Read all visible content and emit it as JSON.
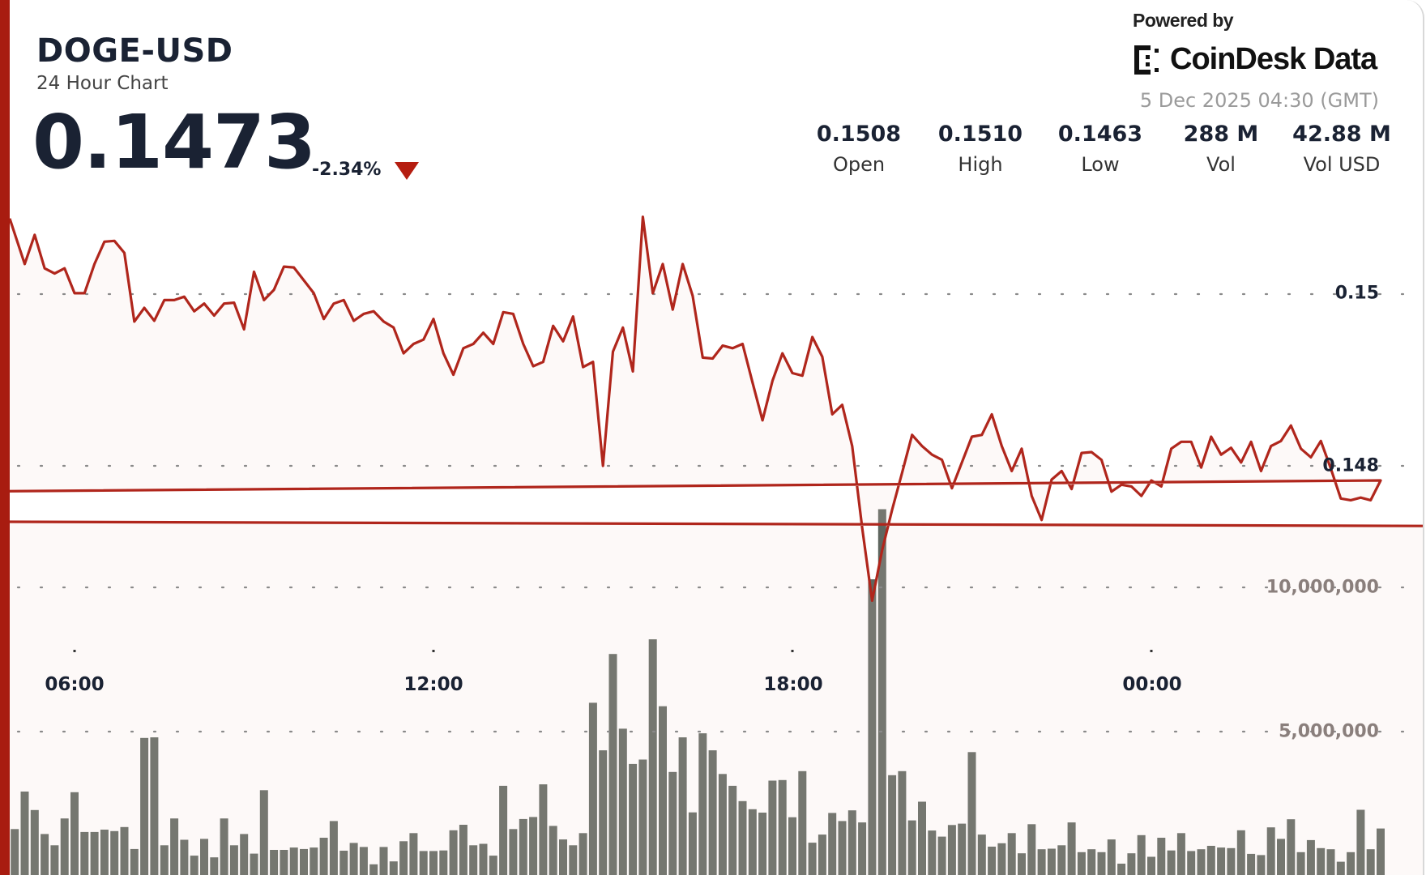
{
  "header": {
    "title": "DOGE-USD",
    "subtitle": "24 Hour Chart",
    "price": "0.1473",
    "change": "-2.34%",
    "direction": "down",
    "powered_by": "Powered by",
    "brand": "CoinDesk Data",
    "timestamp": "5 Dec 2025 04:30 (GMT)"
  },
  "stats": [
    {
      "value": "0.1508",
      "label": "Open"
    },
    {
      "value": "0.1510",
      "label": "High"
    },
    {
      "value": "0.1463",
      "label": "Low"
    },
    {
      "value": "288 M",
      "label": "Vol"
    },
    {
      "value": "42.88 M",
      "label": "Vol USD"
    }
  ],
  "colors": {
    "accent": "#a81c10",
    "line": "#b0261c",
    "area": "#c0504a",
    "bars": "#5f665f",
    "down": "#b51d10"
  },
  "chart_data": {
    "type": "area",
    "grid": true,
    "price_ticks": [
      "0.15",
      "0.148"
    ],
    "price_tick_values": [
      0.15,
      0.148
    ],
    "volume_ticks": [
      "10,000,000",
      "5,000,000"
    ],
    "volume_tick_values": [
      10000000,
      5000000
    ],
    "x_ticks": [
      "06:00",
      "12:00",
      "18:00",
      "00:00"
    ],
    "x": [
      "05:00",
      "05:10",
      "05:20",
      "05:30",
      "05:40",
      "05:50",
      "06:00",
      "06:10",
      "06:20",
      "06:30",
      "06:40",
      "06:50",
      "07:00",
      "07:10",
      "07:20",
      "07:30",
      "07:40",
      "07:50",
      "08:00",
      "08:10",
      "08:20",
      "08:30",
      "08:40",
      "08:50",
      "09:00",
      "09:10",
      "09:20",
      "09:30",
      "09:40",
      "09:50",
      "10:00",
      "10:10",
      "10:20",
      "10:30",
      "10:40",
      "10:50",
      "11:00",
      "11:10",
      "11:20",
      "11:30",
      "11:40",
      "11:50",
      "12:00",
      "12:10",
      "12:20",
      "12:30",
      "12:40",
      "12:50",
      "13:00",
      "13:10",
      "13:20",
      "13:30",
      "13:40",
      "13:50",
      "14:00",
      "14:10",
      "14:20",
      "14:30",
      "14:40",
      "14:50",
      "15:00",
      "15:10",
      "15:20",
      "15:30",
      "15:40",
      "15:50",
      "16:00",
      "16:10",
      "16:20",
      "16:30",
      "16:40",
      "16:50",
      "17:00",
      "17:10",
      "17:20",
      "17:30",
      "17:40",
      "17:50",
      "18:00",
      "18:10",
      "18:20",
      "18:30",
      "18:40",
      "18:50",
      "19:00",
      "19:10",
      "19:20",
      "19:30",
      "19:40",
      "19:50",
      "20:00",
      "20:10",
      "20:20",
      "20:30",
      "20:40",
      "20:50",
      "21:00",
      "21:10",
      "21:20",
      "21:30",
      "21:40",
      "21:50",
      "22:00",
      "22:10",
      "22:20",
      "22:30",
      "22:40",
      "22:50",
      "23:00",
      "23:10",
      "23:20",
      "23:30",
      "23:40",
      "23:50",
      "00:00",
      "00:10",
      "00:20",
      "00:30",
      "00:40",
      "00:50",
      "01:00",
      "01:10",
      "01:20",
      "01:30",
      "01:40",
      "01:50",
      "02:00",
      "02:10",
      "02:20",
      "02:30",
      "02:40",
      "02:50",
      "03:00",
      "03:10",
      "03:20",
      "03:30",
      "03:40",
      "03:50",
      "04:00",
      "04:10",
      "04:20",
      "04:30"
    ],
    "series": [
      {
        "type": "line",
        "values": [
          0.15088,
          0.15035,
          0.15069,
          0.1503,
          0.15024,
          0.1503,
          0.15001,
          0.15001,
          0.15035,
          0.15061,
          0.15062,
          0.15048,
          0.14968,
          0.14984,
          0.14969,
          0.14993,
          0.14993,
          0.14997,
          0.1498,
          0.14989,
          0.14975,
          0.14989,
          0.1499,
          0.14959,
          0.15026,
          0.14993,
          0.15005,
          0.15032,
          0.15031,
          0.15016,
          0.15001,
          0.14971,
          0.14989,
          0.14993,
          0.14969,
          0.14977,
          0.1498,
          0.14968,
          0.14961,
          0.14931,
          0.14942,
          0.14947,
          0.14971,
          0.14931,
          0.14906,
          0.14937,
          0.14942,
          0.14955,
          0.14942,
          0.14979,
          0.14977,
          0.14942,
          0.14916,
          0.14921,
          0.14963,
          0.14945,
          0.14974,
          0.14915,
          0.14921,
          0.148,
          0.14933,
          0.14961,
          0.1491,
          0.1509,
          0.15001,
          0.15035,
          0.14982,
          0.15035,
          0.14998,
          0.14926,
          0.14925,
          0.1494,
          0.14937,
          0.14942,
          0.14897,
          0.14853,
          0.14899,
          0.14931,
          0.14908,
          0.14905,
          0.1495,
          0.14927,
          0.1486,
          0.14871,
          0.14823,
          0.14728,
          0.14643,
          0.14702,
          0.14749,
          0.14792,
          0.14836,
          0.14823,
          0.14813,
          0.14807,
          0.14774,
          0.14804,
          0.14834,
          0.14836,
          0.1486,
          0.14823,
          0.14794,
          0.1482,
          0.14765,
          0.14737,
          0.14784,
          0.14794,
          0.14773,
          0.14815,
          0.14816,
          0.14807,
          0.1477,
          0.14778,
          0.14776,
          0.14765,
          0.14783,
          0.14776,
          0.1482,
          0.14828,
          0.14828,
          0.14798,
          0.14834,
          0.14813,
          0.14821,
          0.14804,
          0.14828,
          0.14794,
          0.14823,
          0.14829,
          0.14847,
          0.1482,
          0.1481,
          0.14829,
          0.14797,
          0.14762,
          0.1476,
          0.14763,
          0.1476,
          0.14783,
          0.1477,
          0.14735,
          0.14735,
          0.1473
        ]
      },
      {
        "type": "bar",
        "values": [
          1620000,
          2920000,
          2280000,
          1450000,
          1060000,
          1990000,
          2900000,
          1520000,
          1520000,
          1600000,
          1550000,
          1690000,
          930000,
          4780000,
          4800000,
          1060000,
          1990000,
          1250000,
          700000,
          1280000,
          640000,
          1990000,
          1060000,
          1450000,
          770000,
          2970000,
          900000,
          900000,
          980000,
          930000,
          980000,
          1320000,
          1900000,
          870000,
          1140000,
          1000000,
          400000,
          1000000,
          500000,
          1200000,
          1480000,
          860000,
          860000,
          880000,
          1580000,
          1770000,
          1060000,
          1110000,
          700000,
          3120000,
          1620000,
          1970000,
          2040000,
          3170000,
          1730000,
          1260000,
          1060000,
          1480000,
          6000000,
          4350000,
          7690000,
          5100000,
          3880000,
          4030000,
          8200000,
          5880000,
          3600000,
          4800000,
          2200000,
          4940000,
          4350000,
          3530000,
          3120000,
          2590000,
          2310000,
          2190000,
          3300000,
          3320000,
          2030000,
          3630000,
          1150000,
          1430000,
          2180000,
          1900000,
          2270000,
          1850000,
          10280000,
          12710000,
          3490000,
          3630000,
          1920000,
          2570000,
          1570000,
          1360000,
          1760000,
          1810000,
          4290000,
          1430000,
          1010000,
          1130000,
          1480000,
          780000,
          1790000,
          920000,
          940000,
          1060000,
          1850000,
          820000,
          920000,
          820000,
          1260000,
          420000,
          780000,
          1410000,
          660000,
          1320000,
          880000,
          1480000,
          860000,
          920000,
          1040000,
          980000,
          960000,
          1580000,
          760000,
          720000,
          1680000,
          1280000,
          1960000,
          820000,
          1240000,
          960000,
          920000,
          490000,
          820000,
          2290000,
          920000,
          1640000,
          1550000,
          880000,
          920000,
          700000
        ]
      }
    ]
  }
}
